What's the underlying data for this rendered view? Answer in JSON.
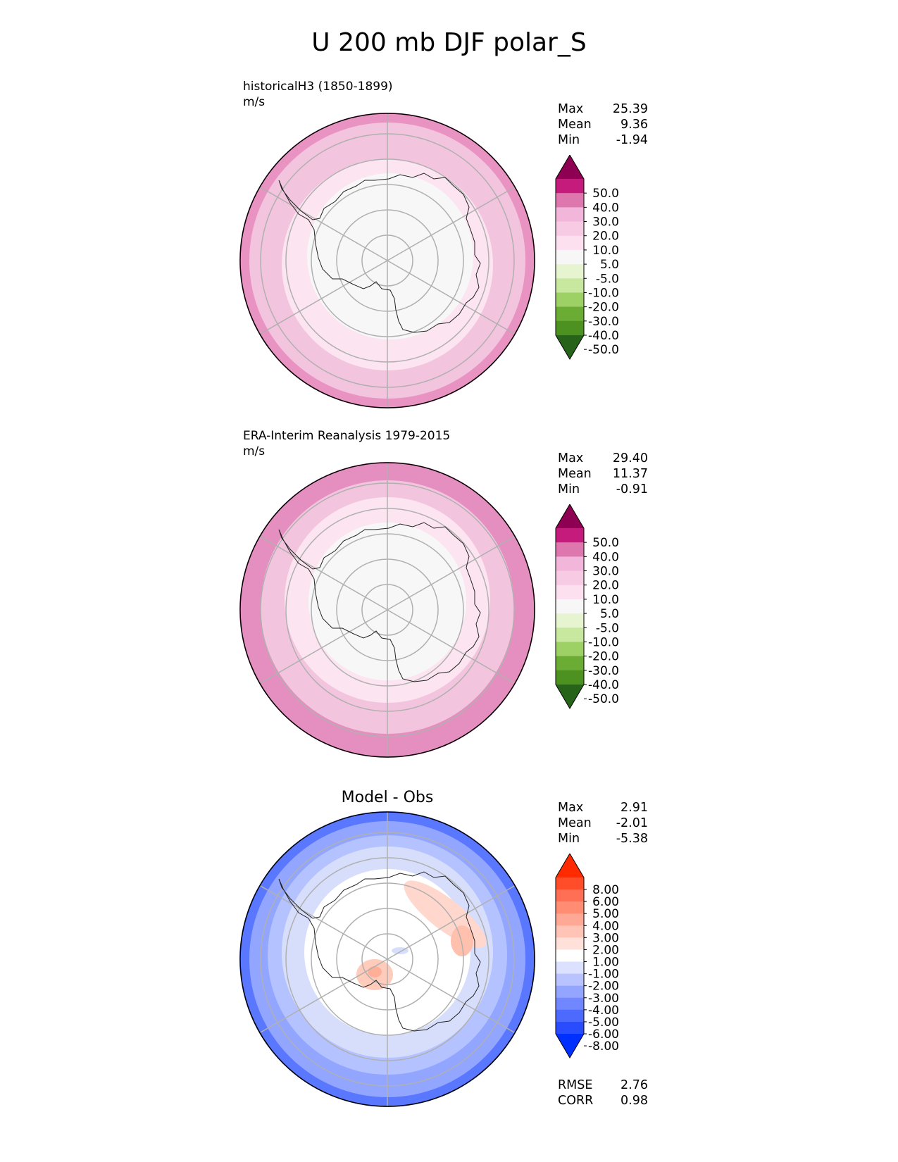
{
  "title": "U 200 mb DJF polar_S",
  "panels": [
    {
      "id": "test",
      "label_line1": "historicalH3 (1850-1899)",
      "label_line2": "m/s",
      "stats": [
        {
          "name": "Max",
          "value": "25.39"
        },
        {
          "name": "Mean",
          "value": "9.36"
        },
        {
          "name": "Min",
          "value": "-1.94"
        }
      ],
      "colorbar": {
        "labels": [
          "50.0",
          "40.0",
          "30.0",
          "20.0",
          "10.0",
          "5.0",
          "-5.0",
          "-10.0",
          "-20.0",
          "-30.0",
          "-40.0",
          "-50.0"
        ],
        "colors": [
          "#8e0152",
          "#c51b7d",
          "#de77ae",
          "#f1b6da",
          "#f6cbe3",
          "#fde0ef",
          "#f7f7f7",
          "#e6f5d0",
          "#c9e89f",
          "#9dd065",
          "#6aac34",
          "#4d9221",
          "#276419"
        ]
      }
    },
    {
      "id": "reference",
      "label_line1": "ERA-Interim Reanalysis 1979-2015",
      "label_line2": "m/s",
      "stats": [
        {
          "name": "Max",
          "value": "29.40"
        },
        {
          "name": "Mean",
          "value": "11.37"
        },
        {
          "name": "Min",
          "value": "-0.91"
        }
      ],
      "colorbar": {
        "labels": [
          "50.0",
          "40.0",
          "30.0",
          "20.0",
          "10.0",
          "5.0",
          "-5.0",
          "-10.0",
          "-20.0",
          "-30.0",
          "-40.0",
          "-50.0"
        ],
        "colors": [
          "#8e0152",
          "#c51b7d",
          "#de77ae",
          "#f1b6da",
          "#f6cbe3",
          "#fde0ef",
          "#f7f7f7",
          "#e6f5d0",
          "#c9e89f",
          "#9dd065",
          "#6aac34",
          "#4d9221",
          "#276419"
        ]
      }
    },
    {
      "id": "diff",
      "title": "Model - Obs",
      "stats": [
        {
          "name": "Max",
          "value": "2.91"
        },
        {
          "name": "Mean",
          "value": "-2.01"
        },
        {
          "name": "Min",
          "value": "-5.38"
        }
      ],
      "extra_stats": [
        {
          "name": "RMSE",
          "value": "2.76"
        },
        {
          "name": "CORR",
          "value": "0.98"
        }
      ],
      "colorbar": {
        "labels": [
          "8.00",
          "6.00",
          "5.00",
          "4.00",
          "3.00",
          "2.00",
          "1.00",
          "-1.00",
          "-2.00",
          "-3.00",
          "-4.00",
          "-5.00",
          "-6.00",
          "-8.00"
        ],
        "colors": [
          "#ff2a00",
          "#ff4d2a",
          "#ff6f55",
          "#ff8c73",
          "#ffa895",
          "#ffc4b5",
          "#ffe1d9",
          "#ffffff",
          "#dbe1ff",
          "#b8c3ff",
          "#94a5ff",
          "#7087ff",
          "#4d6aff",
          "#2a4cff",
          "#0030ff"
        ]
      }
    }
  ],
  "chart_data": [
    {
      "type": "heatmap",
      "title": "historicalH3 (1850-1899)",
      "units": "m/s",
      "projection": "south polar stereographic",
      "levels": [
        -50,
        -40,
        -30,
        -20,
        -10,
        -5,
        5,
        10,
        20,
        30,
        40,
        50
      ],
      "stats": {
        "max": 25.39,
        "mean": 9.36,
        "min": -1.94
      }
    },
    {
      "type": "heatmap",
      "title": "ERA-Interim Reanalysis 1979-2015",
      "units": "m/s",
      "projection": "south polar stereographic",
      "levels": [
        -50,
        -40,
        -30,
        -20,
        -10,
        -5,
        5,
        10,
        20,
        30,
        40,
        50
      ],
      "stats": {
        "max": 29.4,
        "mean": 11.37,
        "min": -0.91
      }
    },
    {
      "type": "heatmap",
      "title": "Model - Obs",
      "projection": "south polar stereographic",
      "levels": [
        -8,
        -6,
        -5,
        -4,
        -3,
        -2,
        -1,
        1,
        2,
        3,
        4,
        5,
        6,
        8
      ],
      "stats": {
        "max": 2.91,
        "mean": -2.01,
        "min": -5.38,
        "rmse": 2.76,
        "corr": 0.98
      }
    }
  ]
}
